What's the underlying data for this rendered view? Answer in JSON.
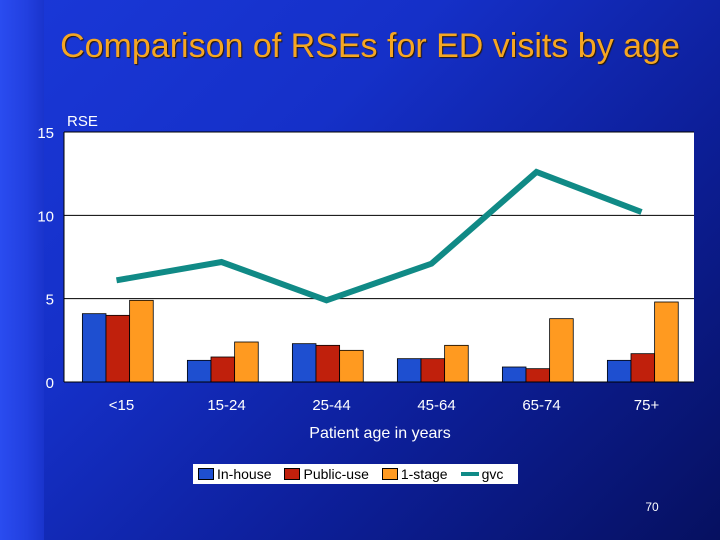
{
  "slide": {
    "title": "Comparison of RSEs for ED visits by age",
    "page_number": "70"
  },
  "chart_data": {
    "type": "bar",
    "title": "Comparison of RSEs for ED visits by age",
    "xlabel": "Patient age in years",
    "ylabel": "RSE",
    "categories": [
      "<15",
      "15-24",
      "25-44",
      "45-64",
      "65-74",
      "75+"
    ],
    "y_ticks": [
      "0",
      "5",
      "10",
      "15"
    ],
    "ylim": [
      0,
      15
    ],
    "series": [
      {
        "name": "In-house",
        "type": "bar",
        "color": "#1e4fd0",
        "values": [
          4.1,
          1.3,
          2.3,
          1.4,
          0.9,
          1.3
        ]
      },
      {
        "name": "Public-use",
        "type": "bar",
        "color": "#c0200c",
        "values": [
          4.0,
          1.5,
          2.2,
          1.4,
          0.8,
          1.7
        ]
      },
      {
        "name": "1-stage",
        "type": "bar",
        "color": "#ff9a20",
        "values": [
          4.9,
          2.4,
          1.9,
          2.2,
          3.8,
          4.8
        ]
      },
      {
        "name": "gvc",
        "type": "line",
        "color": "#108a86",
        "values": [
          6.1,
          7.2,
          4.9,
          7.1,
          12.6,
          10.2
        ]
      }
    ],
    "grid": true,
    "legend_position": "bottom"
  }
}
